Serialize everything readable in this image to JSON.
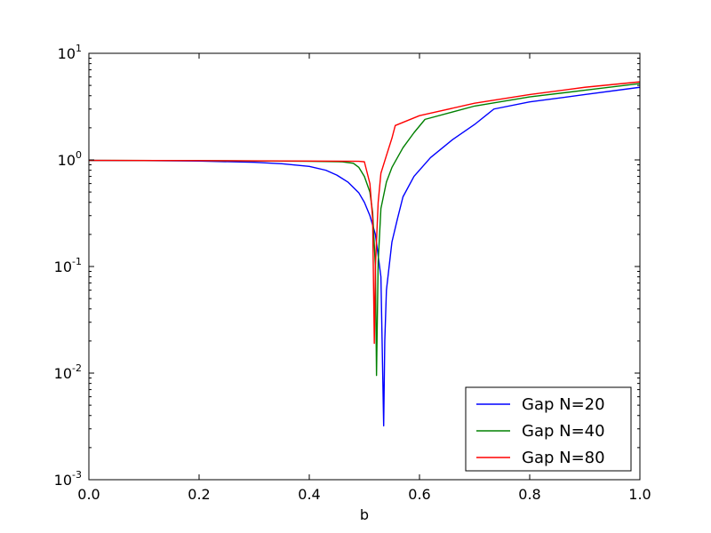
{
  "chart_data": {
    "type": "line",
    "title": "",
    "xlabel": "b",
    "ylabel": "",
    "xlim": [
      0.0,
      1.0
    ],
    "ylim": [
      0.001,
      10
    ],
    "yscale": "log",
    "grid": false,
    "legend_position": "lower-right",
    "x_ticks": [
      {
        "value": 0.0,
        "label": "0.0"
      },
      {
        "value": 0.2,
        "label": "0.2"
      },
      {
        "value": 0.4,
        "label": "0.4"
      },
      {
        "value": 0.6,
        "label": "0.6"
      },
      {
        "value": 0.8,
        "label": "0.8"
      },
      {
        "value": 1.0,
        "label": "1.0"
      }
    ],
    "y_ticks": [
      {
        "value": 0.001,
        "base": "10",
        "exp": "-3"
      },
      {
        "value": 0.01,
        "base": "10",
        "exp": "-2"
      },
      {
        "value": 0.1,
        "base": "10",
        "exp": "-1"
      },
      {
        "value": 1,
        "base": "10",
        "exp": "0"
      },
      {
        "value": 10,
        "base": "10",
        "exp": "1"
      }
    ],
    "series": [
      {
        "name": "Gap N=20",
        "color": "#0000ff",
        "points": [
          [
            0.0,
            0.99
          ],
          [
            0.1,
            0.985
          ],
          [
            0.2,
            0.975
          ],
          [
            0.3,
            0.95
          ],
          [
            0.35,
            0.92
          ],
          [
            0.4,
            0.87
          ],
          [
            0.43,
            0.8
          ],
          [
            0.45,
            0.72
          ],
          [
            0.47,
            0.62
          ],
          [
            0.49,
            0.49
          ],
          [
            0.5,
            0.4
          ],
          [
            0.51,
            0.3
          ],
          [
            0.52,
            0.2
          ],
          [
            0.53,
            0.08
          ],
          [
            0.535,
            0.0032
          ],
          [
            0.537,
            0.02
          ],
          [
            0.54,
            0.06
          ],
          [
            0.55,
            0.17
          ],
          [
            0.56,
            0.28
          ],
          [
            0.57,
            0.45
          ],
          [
            0.59,
            0.7
          ],
          [
            0.62,
            1.05
          ],
          [
            0.66,
            1.55
          ],
          [
            0.7,
            2.15
          ],
          [
            0.735,
            3.0
          ],
          [
            0.8,
            3.5
          ],
          [
            0.9,
            4.1
          ],
          [
            1.0,
            4.8
          ]
        ]
      },
      {
        "name": "Gap N=40",
        "color": "#008000",
        "points": [
          [
            0.0,
            0.99
          ],
          [
            0.2,
            0.985
          ],
          [
            0.4,
            0.97
          ],
          [
            0.46,
            0.96
          ],
          [
            0.48,
            0.93
          ],
          [
            0.49,
            0.85
          ],
          [
            0.5,
            0.7
          ],
          [
            0.51,
            0.5
          ],
          [
            0.515,
            0.32
          ],
          [
            0.52,
            0.1
          ],
          [
            0.522,
            0.0095
          ],
          [
            0.525,
            0.11
          ],
          [
            0.53,
            0.35
          ],
          [
            0.54,
            0.62
          ],
          [
            0.55,
            0.85
          ],
          [
            0.57,
            1.3
          ],
          [
            0.59,
            1.8
          ],
          [
            0.61,
            2.4
          ],
          [
            0.7,
            3.2
          ],
          [
            0.8,
            3.9
          ],
          [
            0.9,
            4.5
          ],
          [
            1.0,
            5.2
          ]
        ]
      },
      {
        "name": "Gap N=80",
        "color": "#ff0000",
        "points": [
          [
            0.0,
            0.99
          ],
          [
            0.2,
            0.985
          ],
          [
            0.4,
            0.975
          ],
          [
            0.49,
            0.97
          ],
          [
            0.5,
            0.96
          ],
          [
            0.51,
            0.6
          ],
          [
            0.515,
            0.28
          ],
          [
            0.518,
            0.019
          ],
          [
            0.52,
            0.1
          ],
          [
            0.525,
            0.4
          ],
          [
            0.53,
            0.75
          ],
          [
            0.54,
            1.1
          ],
          [
            0.55,
            1.6
          ],
          [
            0.556,
            2.1
          ],
          [
            0.6,
            2.6
          ],
          [
            0.7,
            3.4
          ],
          [
            0.8,
            4.1
          ],
          [
            0.9,
            4.8
          ],
          [
            1.0,
            5.4
          ]
        ]
      }
    ]
  }
}
